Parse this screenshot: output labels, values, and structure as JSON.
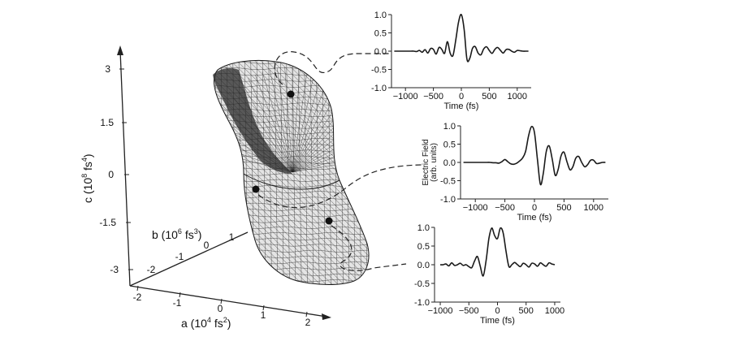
{
  "surface_plot": {
    "axes": {
      "a": {
        "label": "a (10",
        "exp": "4",
        "unit": " fs",
        "unit_exp": "2",
        "close": ")",
        "ticks": [
          "-2",
          "-1",
          "0",
          "1",
          "2"
        ]
      },
      "b": {
        "label": "b (10",
        "exp": "6",
        "unit": " fs",
        "unit_exp": "3",
        "close": ")",
        "ticks": [
          "-2",
          "-1",
          "0",
          "1"
        ]
      },
      "c": {
        "label": "c (10",
        "exp": "8",
        "unit": " fs",
        "unit_exp": "4",
        "close": ")",
        "ticks": [
          "3",
          "1.5",
          "0",
          "-1.5",
          "-3"
        ]
      }
    },
    "marker_color": "#111111",
    "mesh_color": "#1a1a1a",
    "fill_color": "#e4e4e4"
  },
  "chart_data": [
    {
      "type": "line",
      "xlabel": "Time (fs)",
      "ylabel": "",
      "xlim": [
        -1250,
        1250
      ],
      "ylim": [
        -1.0,
        1.0
      ],
      "xticks": [
        "-1000",
        "-500",
        "0",
        "500",
        "1000"
      ],
      "yticks": [
        "1.0",
        "0.5",
        "0.0",
        "-0.5",
        "-1.0"
      ],
      "series": [
        {
          "x": [
            -1200,
            -1150,
            -1100,
            -1050,
            -1000,
            -950,
            -900,
            -850,
            -800,
            -750,
            -700,
            -650,
            -600,
            -550,
            -500,
            -450,
            -400,
            -350,
            -300,
            -250,
            -200,
            -150,
            -100,
            -50,
            0,
            50,
            100,
            150,
            200,
            250,
            300,
            350,
            400,
            450,
            500,
            550,
            600,
            650,
            700,
            750,
            800,
            850,
            900,
            950,
            1000,
            1050,
            1100,
            1150,
            1200
          ],
          "y": [
            0.0,
            0.0,
            0.0,
            0.0,
            0.0,
            0.0,
            0.0,
            0.0,
            -0.01,
            0.02,
            -0.03,
            0.04,
            -0.05,
            0.07,
            0.05,
            -0.08,
            0.1,
            0.05,
            -0.06,
            0.26,
            -0.05,
            -0.12,
            0.3,
            0.8,
            1.0,
            0.6,
            -0.22,
            -0.2,
            0.08,
            0.12,
            -0.05,
            -0.1,
            0.06,
            0.12,
            0.02,
            -0.06,
            0.05,
            0.1,
            0.02,
            -0.05,
            0.04,
            0.05,
            0.0,
            -0.03,
            0.02,
            0.01,
            0.0,
            0.0,
            0.0
          ]
        }
      ]
    },
    {
      "type": "line",
      "xlabel": "Time (fs)",
      "ylabel": "Electric Field",
      "ylabel2": "(arb. units)",
      "xlim": [
        -1250,
        1250
      ],
      "ylim": [
        -1.0,
        1.0
      ],
      "xticks": [
        "-1000",
        "-500",
        "0",
        "500",
        "1000"
      ],
      "yticks": [
        "1.0",
        "0.5",
        "0.0",
        "-0.5",
        "-1.0"
      ],
      "series": [
        {
          "x": [
            -1200,
            -1150,
            -1100,
            -1050,
            -1000,
            -950,
            -900,
            -850,
            -800,
            -750,
            -700,
            -650,
            -600,
            -550,
            -500,
            -450,
            -400,
            -350,
            -300,
            -250,
            -200,
            -150,
            -100,
            -50,
            0,
            50,
            100,
            150,
            200,
            250,
            300,
            350,
            400,
            450,
            500,
            550,
            600,
            650,
            700,
            750,
            800,
            850,
            900,
            950,
            1000,
            1050,
            1100,
            1150,
            1200
          ],
          "y": [
            0.0,
            0.0,
            0.0,
            0.0,
            0.0,
            0.0,
            0.0,
            0.0,
            0.0,
            0.0,
            -0.01,
            -0.01,
            -0.02,
            0.02,
            0.08,
            0.02,
            -0.04,
            -0.05,
            -0.02,
            0.04,
            0.12,
            0.3,
            0.72,
            0.98,
            0.82,
            0.1,
            -0.6,
            -0.3,
            0.3,
            0.45,
            0.1,
            -0.35,
            -0.2,
            0.18,
            0.28,
            0.02,
            -0.2,
            -0.12,
            0.12,
            0.16,
            0.0,
            -0.12,
            -0.06,
            0.06,
            0.06,
            -0.03,
            -0.02,
            0.0,
            0.0
          ]
        }
      ]
    },
    {
      "type": "line",
      "xlabel": "Time (fs)",
      "ylabel": "",
      "xlim": [
        -1100,
        1100
      ],
      "ylim": [
        -1.0,
        1.0
      ],
      "xticks": [
        "-1000",
        "-500",
        "0",
        "500",
        "1000"
      ],
      "yticks": [
        "1.0",
        "0.5",
        "0.0",
        "-0.5",
        "-1.0"
      ],
      "series": [
        {
          "x": [
            -1000,
            -950,
            -900,
            -850,
            -800,
            -750,
            -700,
            -650,
            -600,
            -550,
            -500,
            -450,
            -400,
            -350,
            -300,
            -250,
            -200,
            -150,
            -100,
            -50,
            0,
            50,
            100,
            150,
            200,
            250,
            300,
            350,
            400,
            450,
            500,
            550,
            600,
            650,
            700,
            750,
            800,
            850,
            900,
            950,
            1000
          ],
          "y": [
            0.0,
            0.0,
            0.02,
            -0.03,
            0.05,
            -0.02,
            0.0,
            0.04,
            -0.02,
            0.0,
            -0.05,
            -0.08,
            0.1,
            0.22,
            -0.05,
            -0.3,
            0.1,
            0.7,
            0.98,
            0.78,
            0.7,
            0.98,
            0.85,
            0.35,
            -0.05,
            0.0,
            0.06,
            0.0,
            -0.05,
            0.04,
            0.0,
            -0.06,
            0.04,
            0.02,
            -0.04,
            0.05,
            0.0,
            -0.04,
            0.05,
            0.02,
            0.0
          ]
        }
      ]
    }
  ]
}
